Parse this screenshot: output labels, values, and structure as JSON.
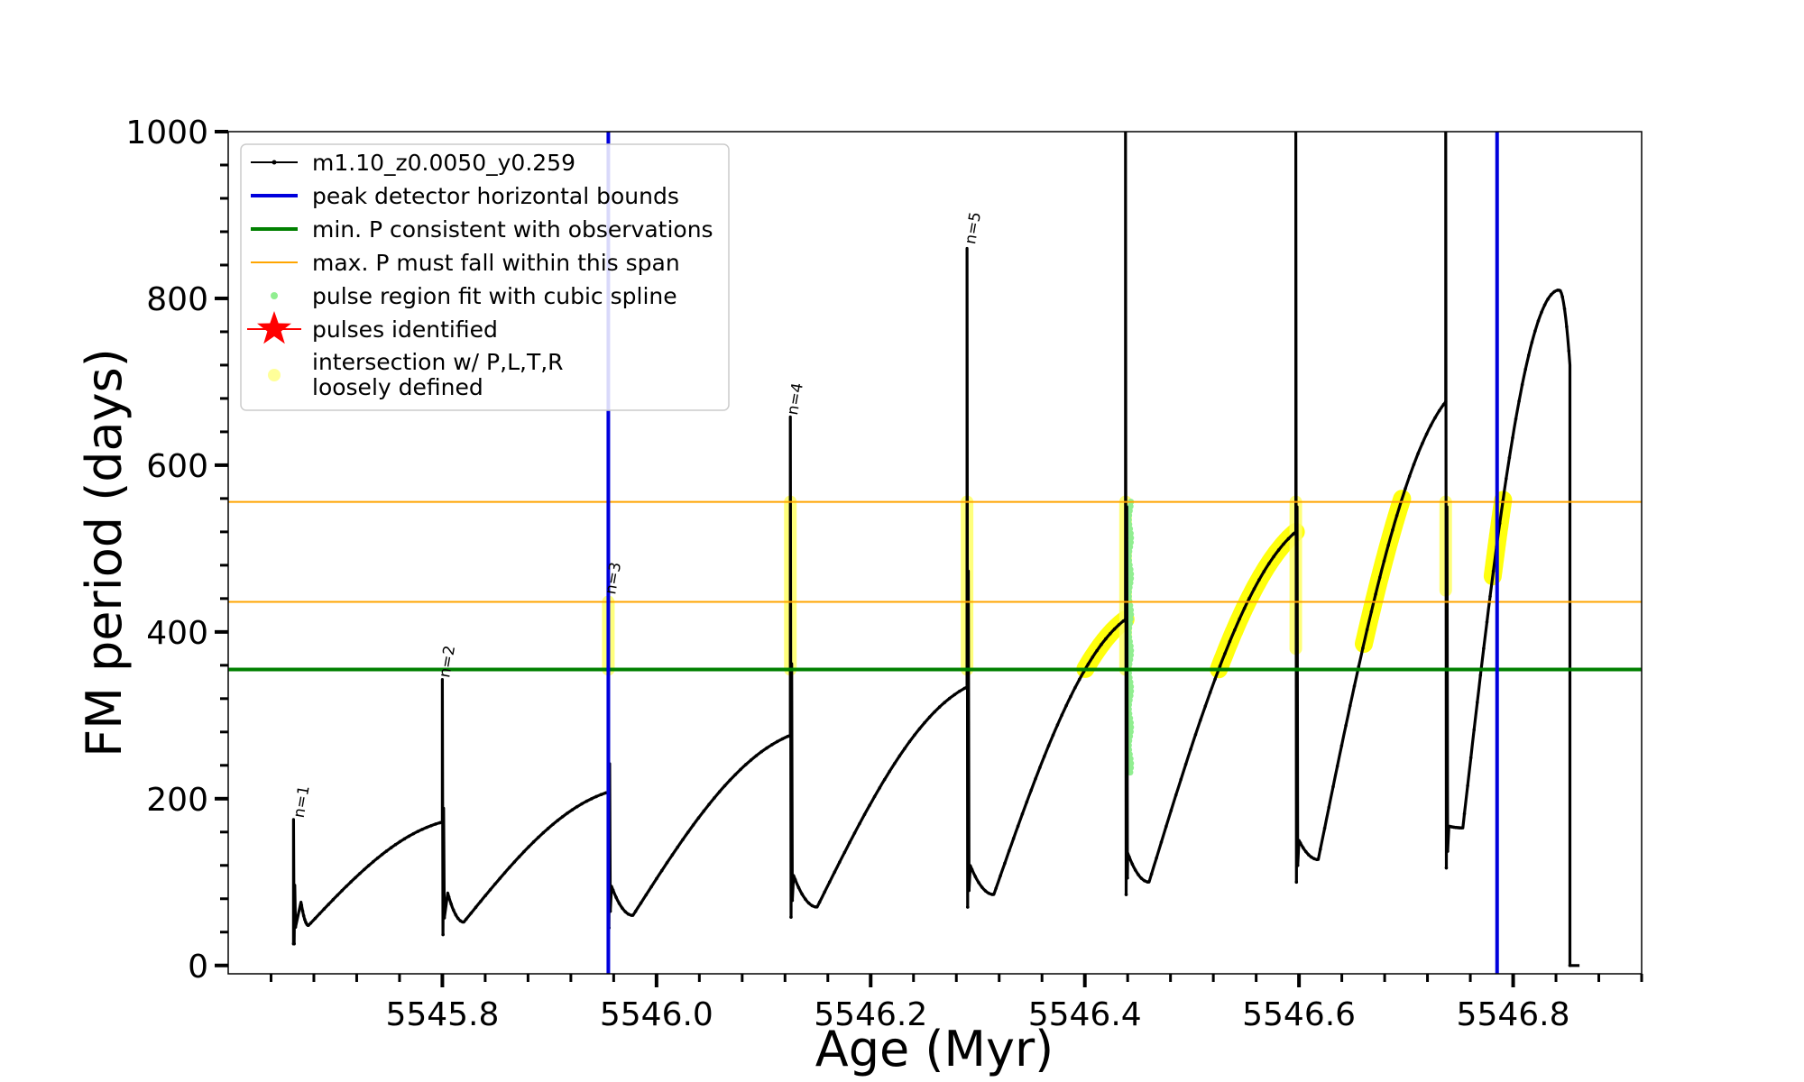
{
  "chart_data": {
    "type": "line",
    "xlabel": "Age (Myr)",
    "ylabel": "FM period (days)",
    "xlim": [
      5545.6,
      5546.92
    ],
    "ylim": [
      -10,
      1000
    ],
    "xticks": [
      5545.8,
      5546.0,
      5546.2,
      5546.4,
      5546.6,
      5546.8
    ],
    "xtick_labels": [
      "5545.8",
      "5546.0",
      "5546.2",
      "5546.4",
      "5546.6",
      "5546.8"
    ],
    "yticks": [
      0,
      200,
      400,
      600,
      800,
      1000
    ],
    "ytick_labels": [
      "0",
      "200",
      "400",
      "600",
      "800",
      "1000"
    ],
    "grid": false,
    "legend_position": "top-left",
    "legend": [
      {
        "label": "m1.10_z0.0050_y0.259",
        "style": "line-dot",
        "color": "#000000"
      },
      {
        "label": "peak detector horizontal bounds",
        "style": "line",
        "color": "#0000dd"
      },
      {
        "label": "min. P consistent with observations",
        "style": "line",
        "color": "#008000"
      },
      {
        "label": "max. P must fall within this span",
        "style": "thin-line",
        "color": "#ffa500"
      },
      {
        "label": "pulse region fit with cubic spline",
        "style": "dot",
        "color": "#90ee90"
      },
      {
        "label": "pulses identified",
        "style": "star",
        "color": "#ff0000"
      },
      {
        "label": "intersection w/ P,L,T,R",
        "label2": "loosely defined",
        "style": "dot",
        "color": "#ffff99"
      }
    ],
    "vlines": [
      5545.955,
      5546.785
    ],
    "hline_min": 355,
    "hlines_max": [
      436,
      556
    ],
    "pulse_labels": [
      {
        "text": "n=1",
        "x": 5545.667,
        "y": 172
      },
      {
        "text": "n=2",
        "x": 5545.803,
        "y": 340
      },
      {
        "text": "n=3",
        "x": 5545.958,
        "y": 440
      },
      {
        "text": "n=4",
        "x": 5546.128,
        "y": 655
      },
      {
        "text": "n=5",
        "x": 5546.294,
        "y": 860
      }
    ],
    "cycles": [
      {
        "start": 5545.661,
        "peak": 175,
        "min": 26,
        "spike_end": 5545.668,
        "recover": 5545.675,
        "trough_x": 5545.675,
        "trough_y": 48,
        "end": 5545.8,
        "end_y": 172
      },
      {
        "start": 5545.8,
        "peak": 343,
        "min": 37,
        "spike_end": 5545.805,
        "recover": 5545.815,
        "trough_x": 5545.82,
        "trough_y": 52,
        "end": 5545.955,
        "end_y": 208
      },
      {
        "start": 5545.955,
        "peak": 440,
        "min": 45,
        "spike_end": 5545.958,
        "recover": 5545.965,
        "trough_x": 5545.978,
        "trough_y": 60,
        "end": 5546.125,
        "end_y": 276
      },
      {
        "start": 5546.125,
        "peak": 658,
        "min": 58,
        "spike_end": 5546.128,
        "recover": 5546.135,
        "trough_x": 5546.15,
        "trough_y": 70,
        "end": 5546.29,
        "end_y": 334
      },
      {
        "start": 5546.29,
        "peak": 860,
        "min": 70,
        "spike_end": 5546.293,
        "recover": 5546.3,
        "trough_x": 5546.315,
        "trough_y": 85,
        "end": 5546.438,
        "end_y": 415
      },
      {
        "start": 5546.438,
        "peak": 1000,
        "min": 85,
        "spike_end": 5546.44,
        "recover": 5546.45,
        "trough_x": 5546.46,
        "trough_y": 100,
        "end": 5546.597,
        "end_y": 520
      },
      {
        "start": 5546.597,
        "peak": 1000,
        "min": 100,
        "spike_end": 5546.6,
        "recover": 5546.605,
        "trough_x": 5546.618,
        "trough_y": 127,
        "end": 5546.737,
        "end_y": 676
      },
      {
        "start": 5546.737,
        "peak": 1000,
        "min": 117,
        "spike_end": 5546.74,
        "recover": 5546.748,
        "trough_x": 5546.753,
        "trough_y": 165,
        "end": 5546.853,
        "end_y": 810,
        "peak_x": 5546.843
      }
    ],
    "final_drop": {
      "x": 5546.853,
      "y": 0,
      "end_x": 5546.862
    },
    "yellow_bands": [
      {
        "x": 5545.955,
        "y0": 355,
        "y1": 436
      },
      {
        "x": 5546.125,
        "y0": 355,
        "y1": 556
      },
      {
        "x": 5546.29,
        "y0": 355,
        "y1": 556
      },
      {
        "x": 5546.438,
        "y0": 355,
        "y1": 556
      },
      {
        "x": 5546.597,
        "y0": 380,
        "y1": 556
      },
      {
        "x": 5546.737,
        "y0": 450,
        "y1": 556
      }
    ],
    "yellow_arcs": [
      {
        "cycle": 4,
        "y0": 355,
        "y1": 415
      },
      {
        "cycle": 5,
        "y0": 355,
        "y1": 520
      },
      {
        "cycle": 6,
        "y0": 385,
        "y1": 560
      },
      {
        "cycle": 7,
        "y0": 465,
        "y1": 560
      }
    ],
    "green_spline": {
      "x": 5546.442,
      "y0": 230,
      "y1": 556
    }
  }
}
